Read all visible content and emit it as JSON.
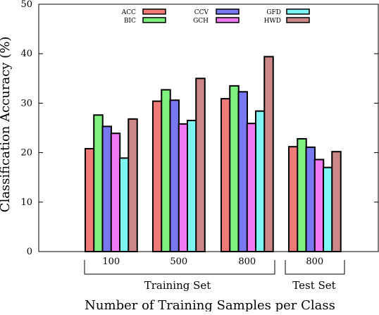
{
  "chart_data": {
    "type": "bar",
    "ylabel": "Classification Accuracy (%)",
    "xlabel": "Number of Training Samples per Class",
    "ylim": [
      0,
      50
    ],
    "yticks": [
      "0",
      "10",
      "20",
      "30",
      "40",
      "50"
    ],
    "categories": [
      "100",
      "500",
      "800",
      "800"
    ],
    "groups": [
      {
        "label": "Training Set",
        "categories": [
          "100",
          "500",
          "800"
        ]
      },
      {
        "label": "Test Set",
        "categories": [
          "800"
        ]
      }
    ],
    "series": [
      {
        "name": "ACC",
        "color": "#f07a78",
        "values": [
          20.8,
          30.4,
          30.9,
          21.2
        ]
      },
      {
        "name": "BIC",
        "color": "#7ef07e",
        "values": [
          27.6,
          32.7,
          33.5,
          22.8
        ]
      },
      {
        "name": "CCV",
        "color": "#7878f0",
        "values": [
          25.3,
          30.6,
          32.3,
          21.1
        ]
      },
      {
        "name": "GCH",
        "color": "#f078f0",
        "values": [
          23.9,
          25.8,
          25.9,
          18.6
        ]
      },
      {
        "name": "GFD",
        "color": "#7ef4f4",
        "values": [
          18.9,
          26.5,
          28.4,
          17.0
        ]
      },
      {
        "name": "HWD",
        "color": "#cc8888",
        "values": [
          26.8,
          35.0,
          39.4,
          20.2
        ]
      }
    ],
    "legend": {
      "position": "top",
      "columns": 3
    },
    "grid": false
  }
}
